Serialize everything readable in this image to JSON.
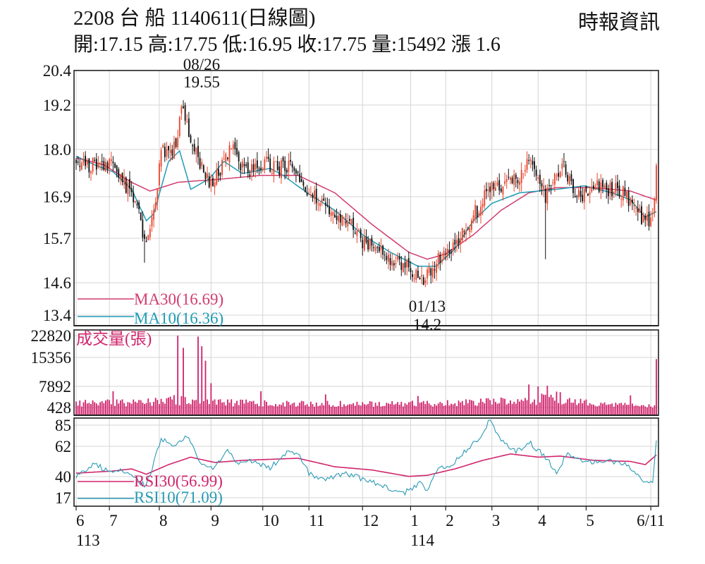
{
  "header": {
    "title": "2208  台  船 1140611(日線圖)",
    "quote": "開:17.15 高:17.75 低:16.95 收:17.75 量:15492 漲 1.6",
    "brand": "時報資訊"
  },
  "colors": {
    "up": "#e8462e",
    "down": "#111111",
    "ma30": "#d23c6e",
    "ma10": "#1f9bb5",
    "volume": "#d0256d",
    "rsi30": "#d0256d",
    "rsi10": "#2a9ab4",
    "frame": "#222222"
  },
  "chart_data": [
    {
      "type": "candlestick",
      "yticks": [
        "20.4",
        "19.2",
        "18.0",
        "16.9",
        "15.7",
        "14.6",
        "13.4"
      ],
      "ylim": [
        13.4,
        20.4
      ],
      "annotations": [
        {
          "date": "08/26",
          "value": "19.55"
        },
        {
          "date": "01/13",
          "value": "14.2"
        }
      ],
      "series": [
        {
          "name": "MA30(16.69)",
          "indicator": "MA30",
          "last": 16.69,
          "keypoints": [
            [
              0,
              17.9
            ],
            [
              15,
              17.7
            ],
            [
              30,
              17.2
            ],
            [
              40,
              16.95
            ],
            [
              55,
              17.2
            ],
            [
              80,
              17.3
            ],
            [
              100,
              17.4
            ],
            [
              120,
              17.4
            ],
            [
              140,
              16.9
            ],
            [
              160,
              16.0
            ],
            [
              180,
              15.2
            ],
            [
              190,
              15.0
            ],
            [
              200,
              15.15
            ],
            [
              215,
              15.7
            ],
            [
              230,
              16.4
            ],
            [
              245,
              16.9
            ],
            [
              260,
              17.05
            ],
            [
              280,
              17.05
            ],
            [
              300,
              16.95
            ],
            [
              314,
              16.69
            ]
          ]
        },
        {
          "name": "MA10(16.36)",
          "indicator": "MA10",
          "last": 16.36,
          "keypoints": [
            [
              0,
              17.95
            ],
            [
              10,
              17.7
            ],
            [
              20,
              17.5
            ],
            [
              30,
              17.0
            ],
            [
              38,
              16.1
            ],
            [
              42,
              16.3
            ],
            [
              50,
              17.8
            ],
            [
              56,
              18.1
            ],
            [
              62,
              17.0
            ],
            [
              72,
              17.3
            ],
            [
              80,
              17.8
            ],
            [
              90,
              17.45
            ],
            [
              105,
              17.6
            ],
            [
              112,
              17.4
            ],
            [
              125,
              16.9
            ],
            [
              140,
              16.4
            ],
            [
              155,
              15.7
            ],
            [
              170,
              15.2
            ],
            [
              185,
              14.8
            ],
            [
              195,
              14.8
            ],
            [
              205,
              15.3
            ],
            [
              215,
              16.1
            ],
            [
              225,
              16.6
            ],
            [
              240,
              16.9
            ],
            [
              250,
              16.95
            ],
            [
              260,
              17.0
            ],
            [
              275,
              17.1
            ],
            [
              290,
              16.9
            ],
            [
              300,
              16.7
            ],
            [
              308,
              16.2
            ],
            [
              314,
              16.36
            ]
          ]
        }
      ],
      "close_keypoints": [
        [
          0,
          17.9
        ],
        [
          6,
          17.6
        ],
        [
          12,
          17.8
        ],
        [
          18,
          17.7
        ],
        [
          26,
          17.2
        ],
        [
          32,
          16.6
        ],
        [
          35,
          16.1
        ],
        [
          37,
          15.4
        ],
        [
          40,
          15.7
        ],
        [
          43,
          16.7
        ],
        [
          46,
          18.2
        ],
        [
          50,
          18.0
        ],
        [
          54,
          18.3
        ],
        [
          57,
          19.5
        ],
        [
          60,
          18.8
        ],
        [
          64,
          18.3
        ],
        [
          70,
          17.2
        ],
        [
          74,
          17.3
        ],
        [
          80,
          17.7
        ],
        [
          84,
          18.3
        ],
        [
          88,
          17.7
        ],
        [
          95,
          17.55
        ],
        [
          103,
          17.7
        ],
        [
          110,
          17.6
        ],
        [
          118,
          17.7
        ],
        [
          125,
          16.9
        ],
        [
          135,
          16.5
        ],
        [
          145,
          16.2
        ],
        [
          155,
          15.5
        ],
        [
          165,
          15.2
        ],
        [
          175,
          14.9
        ],
        [
          185,
          14.55
        ],
        [
          189,
          14.4
        ],
        [
          195,
          14.95
        ],
        [
          200,
          15.05
        ],
        [
          206,
          15.4
        ],
        [
          212,
          16.0
        ],
        [
          218,
          16.5
        ],
        [
          224,
          17.0
        ],
        [
          232,
          17.2
        ],
        [
          240,
          17.4
        ],
        [
          246,
          17.8
        ],
        [
          250,
          17.4
        ],
        [
          254,
          16.8
        ],
        [
          258,
          17.2
        ],
        [
          264,
          17.6
        ],
        [
          270,
          16.8
        ],
        [
          276,
          16.9
        ],
        [
          282,
          17.1
        ],
        [
          290,
          17.0
        ],
        [
          296,
          16.9
        ],
        [
          302,
          16.45
        ],
        [
          308,
          16.1
        ],
        [
          312,
          16.15
        ],
        [
          314,
          17.75
        ]
      ],
      "spikes": [
        [
          37,
          14.9
        ],
        [
          58,
          19.55
        ],
        [
          189,
          14.2
        ],
        [
          254,
          15.0
        ],
        [
          314,
          17.75
        ]
      ]
    },
    {
      "type": "bar",
      "label": "成交量(張)",
      "yticks": [
        "22820",
        "15356",
        "7892",
        "428"
      ],
      "ylim": [
        428,
        22820
      ],
      "base_keypoints": [
        [
          0,
          1800
        ],
        [
          30,
          1900
        ],
        [
          50,
          2800
        ],
        [
          70,
          2000
        ],
        [
          100,
          1800
        ],
        [
          150,
          1500
        ],
        [
          200,
          1700
        ],
        [
          240,
          2600
        ],
        [
          260,
          3500
        ],
        [
          280,
          1800
        ],
        [
          310,
          900
        ],
        [
          314,
          900
        ]
      ],
      "spikes": [
        [
          20,
          5500
        ],
        [
          44,
          2800
        ],
        [
          55,
          22800
        ],
        [
          58,
          19000
        ],
        [
          66,
          22500
        ],
        [
          68,
          19500
        ],
        [
          70,
          15000
        ],
        [
          73,
          8000
        ],
        [
          100,
          5500
        ],
        [
          135,
          4500
        ],
        [
          185,
          4000
        ],
        [
          245,
          7600
        ],
        [
          250,
          7000
        ],
        [
          255,
          7200
        ],
        [
          262,
          5200
        ],
        [
          300,
          4200
        ],
        [
          314,
          15500
        ]
      ]
    },
    {
      "type": "line",
      "label": "RSI",
      "yticks": [
        "85",
        "62",
        "40",
        "17"
      ],
      "ylim": [
        17,
        85
      ],
      "series": [
        {
          "name": "RSI30(56.99)",
          "indicator": "RSI30",
          "last": 56.99,
          "keypoints": [
            [
              0,
              40
            ],
            [
              20,
              42
            ],
            [
              30,
              44
            ],
            [
              38,
              39
            ],
            [
              50,
              48
            ],
            [
              62,
              55
            ],
            [
              75,
              50
            ],
            [
              90,
              52
            ],
            [
              105,
              53
            ],
            [
              120,
              54
            ],
            [
              140,
              46
            ],
            [
              160,
              43
            ],
            [
              180,
              37
            ],
            [
              190,
              38
            ],
            [
              205,
              44
            ],
            [
              220,
              52
            ],
            [
              235,
              58
            ],
            [
              250,
              55
            ],
            [
              262,
              56
            ],
            [
              280,
              52
            ],
            [
              300,
              51
            ],
            [
              308,
              48
            ],
            [
              314,
              56.99
            ]
          ]
        },
        {
          "name": "RSI10(71.09)",
          "indicator": "RSI10",
          "last": 71.09,
          "keypoints": [
            [
              0,
              36
            ],
            [
              10,
              50
            ],
            [
              18,
              40
            ],
            [
              25,
              44
            ],
            [
              30,
              36
            ],
            [
              38,
              28
            ],
            [
              46,
              72
            ],
            [
              54,
              65
            ],
            [
              60,
              74
            ],
            [
              68,
              48
            ],
            [
              75,
              45
            ],
            [
              82,
              60
            ],
            [
              88,
              48
            ],
            [
              96,
              52
            ],
            [
              105,
              44
            ],
            [
              112,
              58
            ],
            [
              120,
              60
            ],
            [
              126,
              40
            ],
            [
              134,
              33
            ],
            [
              145,
              40
            ],
            [
              160,
              32
            ],
            [
              170,
              25
            ],
            [
              178,
              22
            ],
            [
              186,
              30
            ],
            [
              190,
              25
            ],
            [
              196,
              46
            ],
            [
              202,
              45
            ],
            [
              210,
              60
            ],
            [
              218,
              72
            ],
            [
              224,
              90
            ],
            [
              230,
              70
            ],
            [
              238,
              60
            ],
            [
              246,
              68
            ],
            [
              254,
              55
            ],
            [
              260,
              41
            ],
            [
              266,
              58
            ],
            [
              274,
              50
            ],
            [
              286,
              52
            ],
            [
              296,
              50
            ],
            [
              304,
              40
            ],
            [
              308,
              31
            ],
            [
              312,
              33
            ],
            [
              314,
              71.09
            ]
          ]
        }
      ]
    }
  ],
  "x_axis": {
    "months": [
      {
        "i": 0,
        "label": "6"
      },
      {
        "i": 18,
        "label": "7"
      },
      {
        "i": 45,
        "label": "8"
      },
      {
        "i": 73,
        "label": "9"
      },
      {
        "i": 101,
        "label": "10"
      },
      {
        "i": 126,
        "label": "11"
      },
      {
        "i": 155,
        "label": "12"
      },
      {
        "i": 181,
        "label": "1"
      },
      {
        "i": 200,
        "label": "2"
      },
      {
        "i": 225,
        "label": "3"
      },
      {
        "i": 250,
        "label": "4"
      },
      {
        "i": 276,
        "label": "5"
      },
      {
        "i": 311,
        "label": "6/11"
      }
    ],
    "years": [
      {
        "i": 0,
        "label": "113"
      },
      {
        "i": 181,
        "label": "114"
      }
    ]
  }
}
